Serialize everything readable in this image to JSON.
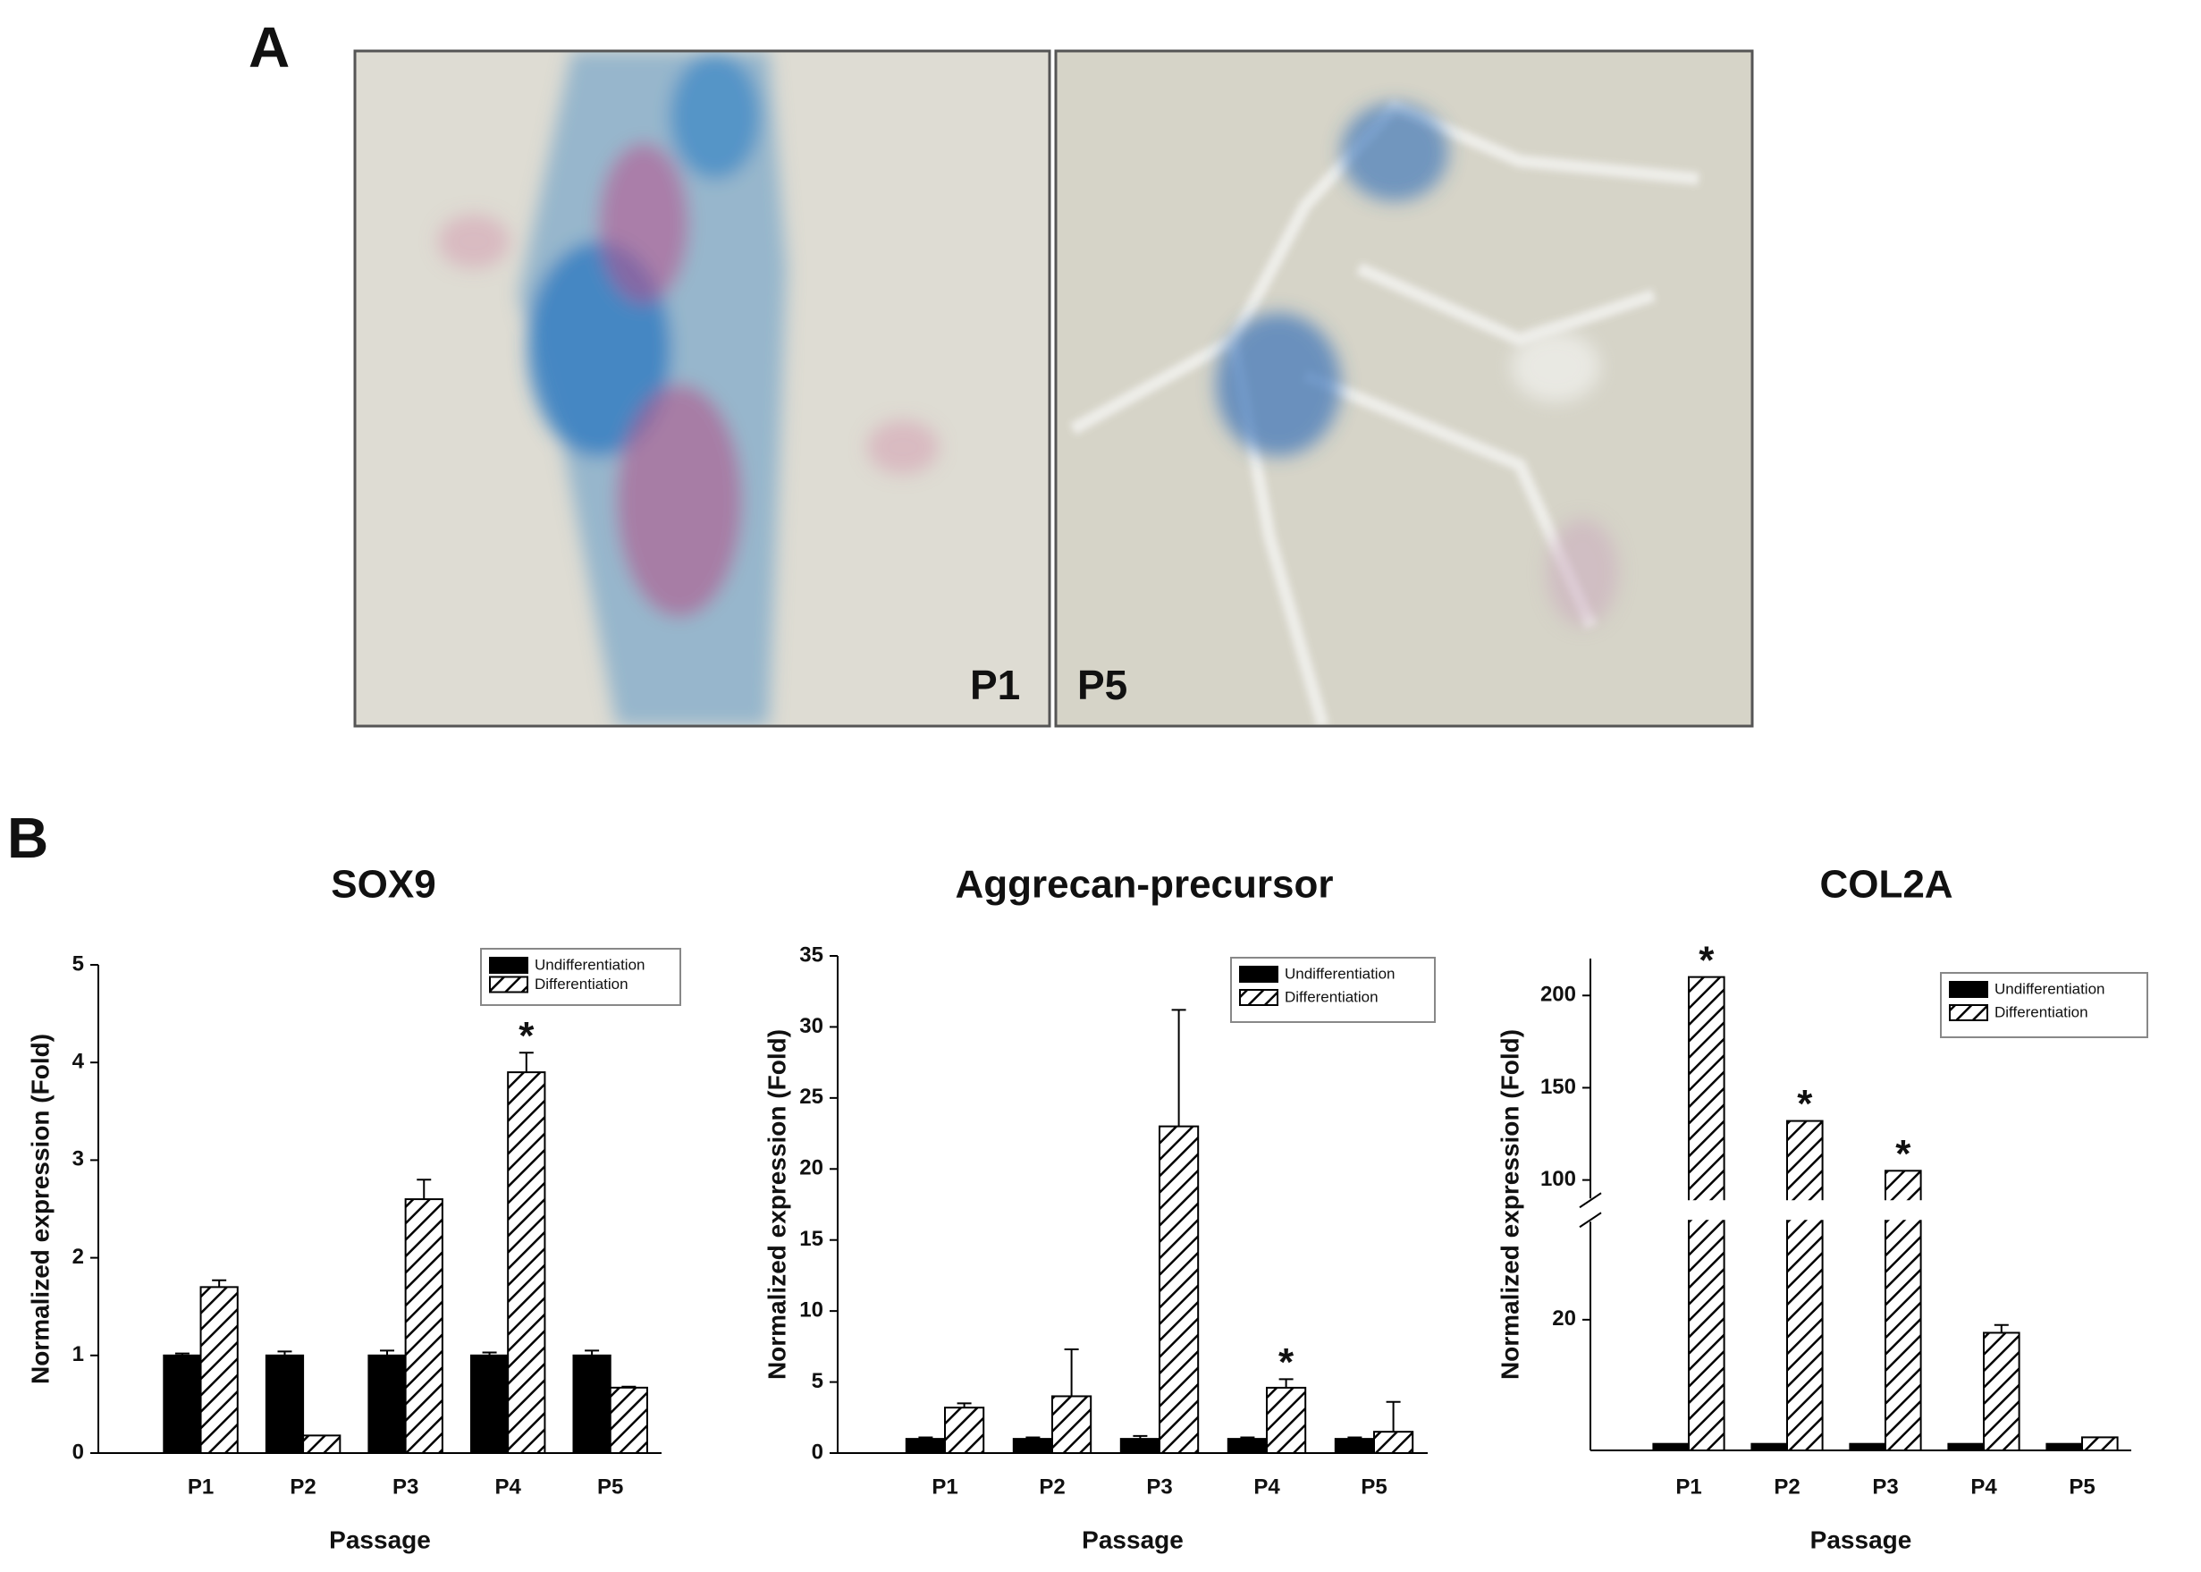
{
  "figure": {
    "panel_a_label": "A",
    "panel_b_label": "B",
    "image_labels": [
      "P1",
      "P5"
    ]
  },
  "chart_data": [
    {
      "type": "bar",
      "title": "SOX9",
      "xlabel": "Passage",
      "ylabel": "Normalized expression (Fold)",
      "categories": [
        "P1",
        "P2",
        "P3",
        "P4",
        "P5"
      ],
      "series": [
        {
          "name": "Undifferentiation",
          "color": "#000000",
          "values": [
            1.0,
            1.0,
            1.0,
            1.0,
            1.0
          ],
          "errors": [
            0.02,
            0.04,
            0.05,
            0.03,
            0.05
          ]
        },
        {
          "name": "Differentiation",
          "color": "#000000",
          "hatch": true,
          "values": [
            1.7,
            0.18,
            2.6,
            3.9,
            0.67
          ],
          "errors": [
            0.07,
            null,
            0.2,
            0.2,
            0.01
          ],
          "significance": [
            null,
            null,
            null,
            "*",
            null
          ]
        }
      ],
      "ylim": [
        0,
        5
      ],
      "yticks": [
        0,
        1,
        2,
        3,
        4,
        5
      ],
      "legend": "upper right"
    },
    {
      "type": "bar",
      "title": "Aggrecan-precursor",
      "xlabel": "Passage",
      "ylabel": "Normalized expression (Fold)",
      "categories": [
        "P1",
        "P2",
        "P3",
        "P4",
        "P5"
      ],
      "series": [
        {
          "name": "Undifferentiation",
          "color": "#000000",
          "values": [
            1.0,
            1.0,
            1.0,
            1.0,
            1.0
          ],
          "errors": [
            0.1,
            0.1,
            0.2,
            0.1,
            0.1
          ]
        },
        {
          "name": "Differentiation",
          "color": "#000000",
          "hatch": true,
          "values": [
            3.2,
            4.0,
            23,
            4.6,
            1.5
          ],
          "errors": [
            0.3,
            3.3,
            8.2,
            0.6,
            2.1
          ],
          "significance": [
            null,
            null,
            null,
            "*",
            null
          ]
        }
      ],
      "ylim": [
        0,
        35
      ],
      "yticks": [
        0,
        5,
        10,
        15,
        20,
        25,
        30,
        35
      ],
      "legend": "upper right"
    },
    {
      "type": "bar",
      "title": "COL2A",
      "xlabel": "Passage",
      "ylabel": "Normalized expression (Fold)",
      "categories": [
        "P1",
        "P2",
        "P3",
        "P4",
        "P5"
      ],
      "series": [
        {
          "name": "Undifferentiation",
          "color": "#000000",
          "values": [
            1.0,
            1.0,
            1.0,
            1.0,
            1.0
          ]
        },
        {
          "name": "Differentiation",
          "color": "#000000",
          "hatch": true,
          "values": [
            210,
            132,
            105,
            18,
            2
          ],
          "errors": [
            null,
            null,
            null,
            1.2,
            null
          ],
          "significance": [
            "*",
            "*",
            "*",
            null,
            null
          ]
        }
      ],
      "ylim": [
        0,
        220
      ],
      "ybreak": [
        35,
        90
      ],
      "yticks": [
        20,
        100,
        150,
        200
      ],
      "legend": "upper right"
    }
  ]
}
